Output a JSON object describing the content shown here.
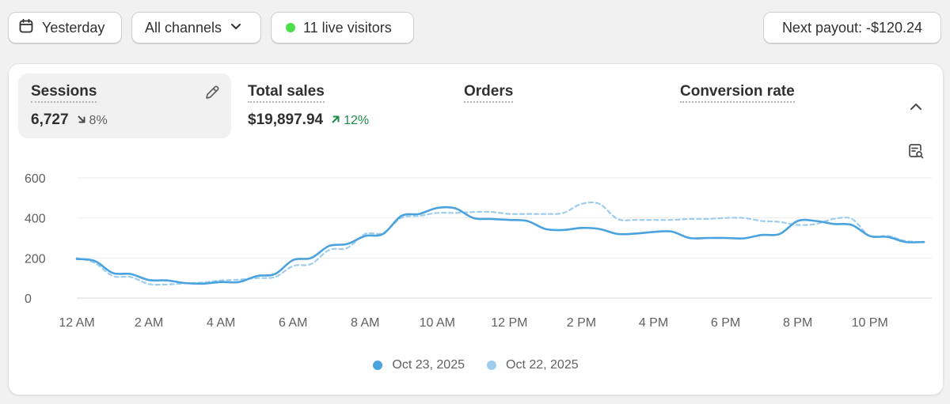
{
  "toolbar": {
    "date_label": "Yesterday",
    "channels_label": "All channels",
    "live_label": "11 live visitors",
    "payout_label": "Next payout: -$120.24",
    "icons": {
      "date": "calendar-icon",
      "channels": "chevron-down-icon",
      "live": "live-status-dot"
    }
  },
  "metrics": [
    {
      "label": "Sessions",
      "value": "6,727",
      "delta": "8%",
      "direction": "down",
      "active": true
    },
    {
      "label": "Total sales",
      "value": "$19,897.94",
      "delta": "12%",
      "direction": "up"
    },
    {
      "label": "Orders",
      "value": ""
    },
    {
      "label": "Conversion rate",
      "value": ""
    }
  ],
  "colors": {
    "accent": "#4aa3df",
    "comparison": "#9ecdee",
    "live": "#4be04b",
    "positive": "#1d8a4c",
    "negative": "#616161"
  },
  "chart_data": {
    "type": "line",
    "ylim": [
      0,
      600
    ],
    "yticks": [
      0,
      200,
      400,
      600
    ],
    "ytick_labels": [
      "0",
      "200",
      "400",
      "600"
    ],
    "x": [
      0,
      0.5,
      1,
      1.5,
      2,
      2.5,
      3,
      3.5,
      4,
      4.5,
      5,
      5.5,
      6,
      6.5,
      7,
      7.5,
      8,
      8.5,
      9,
      9.5,
      10,
      10.5,
      11,
      11.5,
      12,
      12.5,
      13,
      13.5,
      14,
      14.5,
      15,
      15.5,
      16,
      16.5,
      17,
      17.5,
      18,
      18.5,
      19,
      19.5,
      20,
      20.5,
      21,
      21.5,
      22,
      22.5,
      23,
      23.5
    ],
    "xtick_values": [
      0,
      2,
      4,
      6,
      8,
      10,
      12,
      14,
      16,
      18,
      20,
      22
    ],
    "xtick_labels": [
      "12 AM",
      "2 AM",
      "4 AM",
      "6 AM",
      "8 AM",
      "10 AM",
      "12 PM",
      "2 PM",
      "4 PM",
      "6 PM",
      "8 PM",
      "10 PM"
    ],
    "series": [
      {
        "name": "Oct 23, 2025",
        "style": "solid",
        "values": [
          195,
          185,
          125,
          120,
          90,
          88,
          75,
          72,
          80,
          80,
          110,
          120,
          190,
          200,
          260,
          270,
          310,
          320,
          410,
          420,
          450,
          448,
          400,
          395,
          390,
          385,
          345,
          340,
          350,
          345,
          320,
          322,
          330,
          332,
          300,
          300,
          300,
          298,
          315,
          320,
          385,
          385,
          370,
          365,
          310,
          305,
          280,
          280
        ]
      },
      {
        "name": "Oct 22, 2025",
        "style": "dashed",
        "values": [
          200,
          175,
          110,
          105,
          70,
          68,
          73,
          78,
          88,
          92,
          100,
          105,
          160,
          170,
          240,
          250,
          320,
          325,
          400,
          410,
          425,
          425,
          430,
          430,
          420,
          420,
          420,
          425,
          470,
          470,
          395,
          390,
          390,
          390,
          395,
          395,
          400,
          400,
          385,
          380,
          365,
          370,
          395,
          395,
          310,
          310,
          285,
          280
        ]
      }
    ]
  }
}
